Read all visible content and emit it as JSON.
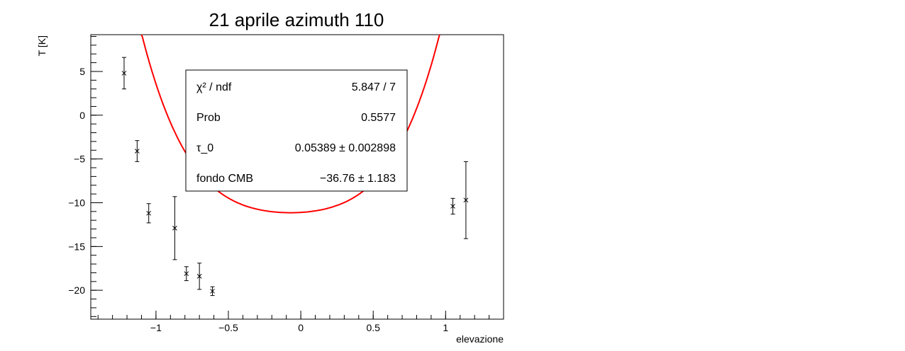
{
  "chart_data": {
    "type": "scatter",
    "title": "21 aprile azimuth 110",
    "xlabel": "elevazione",
    "ylabel": "T [K]",
    "xlim": [
      -1.45,
      1.4
    ],
    "ylim": [
      -23.3,
      9.2
    ],
    "x_ticks": [
      {
        "value": -1,
        "label": "−1"
      },
      {
        "value": -0.5,
        "label": "−0.5"
      },
      {
        "value": 0,
        "label": "0"
      },
      {
        "value": 0.5,
        "label": "0.5"
      },
      {
        "value": 1,
        "label": "1"
      }
    ],
    "y_ticks": [
      {
        "value": 5,
        "label": "5"
      },
      {
        "value": 0,
        "label": "0"
      },
      {
        "value": -5,
        "label": "−5"
      },
      {
        "value": -10,
        "label": "−10"
      },
      {
        "value": -15,
        "label": "−15"
      },
      {
        "value": -20,
        "label": "−20"
      }
    ],
    "grid": false,
    "points": [
      {
        "x": -1.22,
        "y": 4.8,
        "err": 1.8
      },
      {
        "x": -1.13,
        "y": -4.1,
        "err": 1.2
      },
      {
        "x": -1.05,
        "y": -11.2,
        "err": 1.1
      },
      {
        "x": -0.87,
        "y": -12.9,
        "err": 3.6
      },
      {
        "x": -0.79,
        "y": -18.1,
        "err": 0.8
      },
      {
        "x": -0.7,
        "y": -18.4,
        "err": 1.5
      },
      {
        "x": -0.61,
        "y": -20.1,
        "err": 0.5
      },
      {
        "x": 1.05,
        "y": -10.4,
        "err": 0.9
      },
      {
        "x": 1.14,
        "y": -9.7,
        "err": 4.4
      }
    ],
    "fit": {
      "color": "#ff0000",
      "params": {
        "tau_0": 0.05389,
        "fondo_CMB": -36.76
      }
    },
    "stats_box": {
      "rows": [
        {
          "label": "χ² / ndf",
          "value": "5.847 / 7"
        },
        {
          "label": "Prob",
          "value": "0.5577"
        },
        {
          "label": "τ_0",
          "value": "0.05389 ± 0.002898"
        },
        {
          "label": "fondo CMB",
          "value": "−36.76 ± 1.183"
        }
      ]
    }
  }
}
